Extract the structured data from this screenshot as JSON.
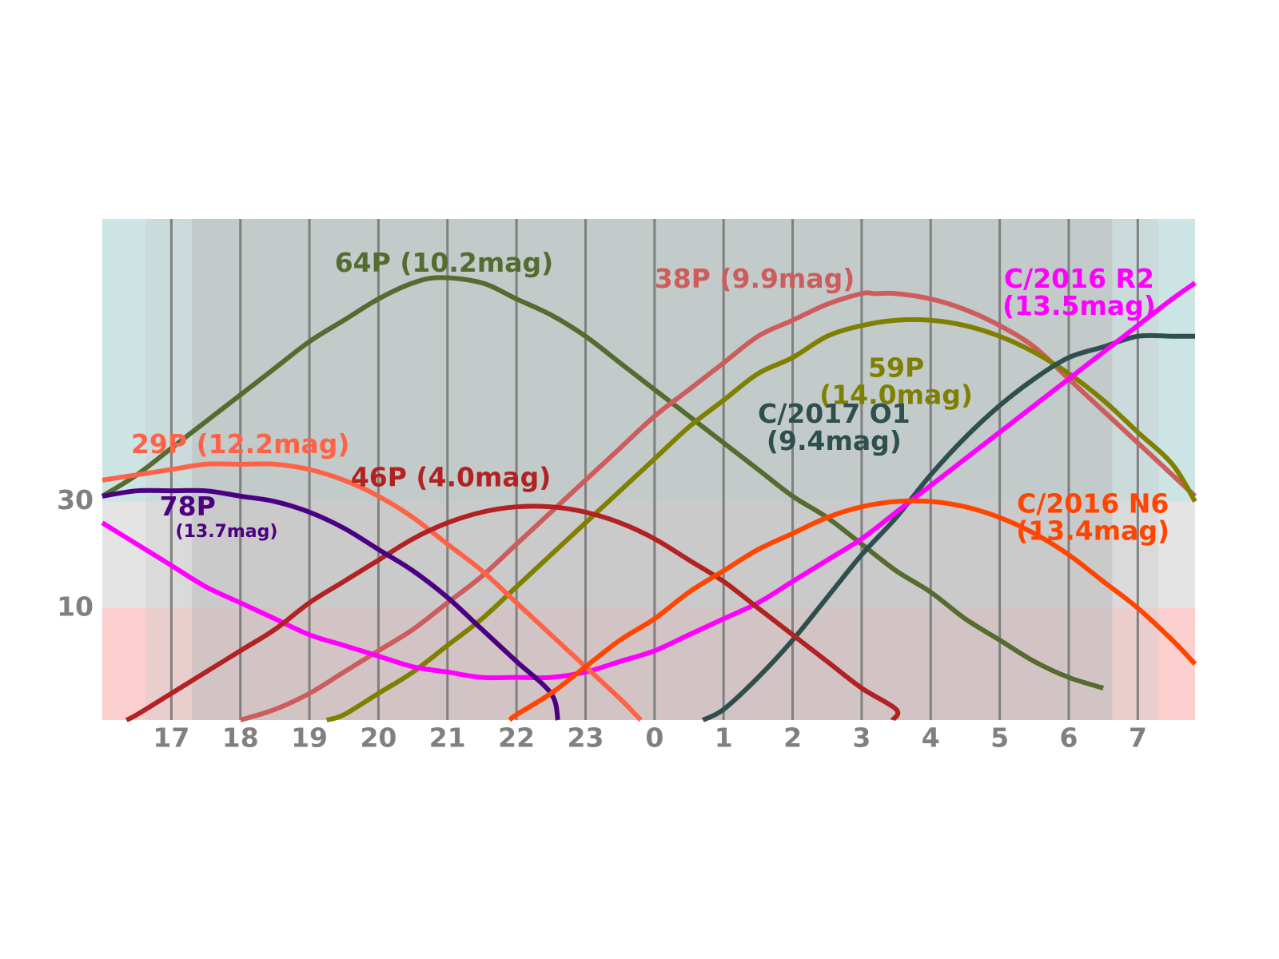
{
  "chart_data": {
    "type": "line",
    "x_ticks": [
      "17",
      "18",
      "19",
      "20",
      "21",
      "22",
      "23",
      "0",
      "1",
      "2",
      "3",
      "4",
      "5",
      "6",
      "7"
    ],
    "y_ticks": [
      30,
      10
    ],
    "xlim": [
      16.0,
      31.83
    ],
    "ylim": [
      -11,
      83
    ],
    "bands": [
      {
        "from": 30,
        "to": 83,
        "color": "#cce4e4"
      },
      {
        "from": 10,
        "to": 30,
        "color": "#e4e4e4"
      },
      {
        "from": -11,
        "to": 10,
        "color": "#fccfcf"
      }
    ],
    "night_overlay": [
      {
        "x0": 16.63,
        "x1": 31.3,
        "color": "rgba(200,200,200,0.35)"
      },
      {
        "x0": 17.3,
        "x1": 30.63,
        "color": "rgba(190,190,190,0.55)"
      }
    ],
    "series": [
      {
        "name": "64P",
        "label": "64P (10.2mag)",
        "color": "#556b2f",
        "x": [
          16.0,
          16.5,
          17.0,
          17.5,
          18.0,
          18.5,
          19.0,
          19.5,
          20.0,
          20.5,
          20.9,
          21.5,
          22.0,
          22.5,
          23.0,
          23.5,
          24.0,
          24.5,
          25.0,
          25.5,
          26.0,
          26.5,
          27.0,
          27.5,
          28.0,
          28.5,
          29.0,
          29.5,
          30.0,
          30.5
        ],
        "y": [
          31,
          35,
          40,
          45,
          50,
          55,
          60,
          64,
          68,
          71,
          72,
          71,
          68,
          65,
          61,
          56,
          51,
          46,
          41,
          36,
          31,
          27,
          22,
          17,
          13,
          8,
          4,
          0,
          -3,
          -5
        ]
      },
      {
        "name": "38P",
        "label": "38P (9.9mag)",
        "color": "#cd5c5c",
        "x": [
          18.0,
          18.5,
          19.0,
          19.5,
          20.0,
          20.5,
          21.0,
          21.5,
          22.0,
          22.5,
          23.0,
          23.5,
          24.0,
          24.5,
          25.0,
          25.5,
          26.0,
          26.5,
          27.0,
          27.2,
          27.5,
          28.0,
          28.5,
          29.0,
          29.5,
          30.0,
          30.5,
          31.0,
          31.5,
          31.83
        ],
        "y": [
          -11,
          -9,
          -6,
          -2,
          2,
          6,
          11,
          16,
          22,
          28,
          34,
          40,
          46,
          51,
          56,
          61,
          64,
          67,
          69,
          69,
          69,
          68,
          66,
          63,
          59,
          53,
          47,
          41,
          35,
          31
        ]
      },
      {
        "name": "59P",
        "label": "59P (14.0mag)",
        "color": "#808000",
        "x": [
          19.25,
          19.5,
          20.0,
          20.5,
          21.0,
          21.5,
          22.0,
          22.5,
          23.0,
          23.5,
          24.0,
          24.5,
          25.0,
          25.5,
          26.0,
          26.5,
          27.0,
          27.5,
          28.0,
          28.5,
          29.0,
          29.5,
          30.0,
          30.5,
          31.0,
          31.5,
          31.83
        ],
        "y": [
          -11,
          -10,
          -6,
          -2,
          3,
          8,
          14,
          20,
          26,
          32,
          38,
          44,
          49,
          54,
          57,
          61,
          63,
          64,
          64,
          63,
          61,
          58,
          54,
          49,
          43,
          37,
          30
        ]
      },
      {
        "name": "C/2017 O1",
        "label": "C/2017 O1 (9.4mag)",
        "color": "#2f4f4f",
        "x": [
          24.7,
          25.0,
          25.5,
          26.0,
          26.5,
          27.0,
          27.5,
          28.0,
          28.5,
          29.0,
          29.5,
          30.0,
          30.5,
          31.0,
          31.5,
          31.83
        ],
        "y": [
          -11,
          -9,
          -3,
          4,
          12,
          20,
          27,
          35,
          42,
          48,
          53,
          57,
          59,
          61,
          61,
          61
        ]
      },
      {
        "name": "C/2016 R2",
        "label": "C/2016 R2 (13.5mag)",
        "color": "#ff00ff",
        "x": [
          16.0,
          16.5,
          17.0,
          17.5,
          18.0,
          18.5,
          19.0,
          19.5,
          20.0,
          20.5,
          21.0,
          21.5,
          22.0,
          22.5,
          23.0,
          23.5,
          24.0,
          24.5,
          25.0,
          25.5,
          26.0,
          26.5,
          27.0,
          27.5,
          28.0,
          28.5,
          29.0,
          29.5,
          30.0,
          30.5,
          31.0,
          31.5,
          31.83
        ],
        "y": [
          26,
          22,
          18,
          14,
          11,
          8,
          5,
          3,
          1,
          -1,
          -2,
          -3,
          -3,
          -3,
          -2,
          0,
          2,
          5,
          8,
          11,
          15,
          19,
          23,
          28,
          33,
          38,
          43,
          48,
          53,
          58,
          63,
          68,
          71
        ]
      },
      {
        "name": "29P",
        "label": "29P (12.2mag)",
        "color": "#ff6347",
        "x": [
          16.0,
          16.5,
          17.0,
          17.5,
          18.0,
          18.5,
          19.0,
          19.5,
          20.0,
          20.5,
          21.0,
          21.5,
          22.0,
          22.5,
          23.0,
          23.5,
          23.8
        ],
        "y": [
          34,
          35,
          36,
          37,
          37,
          37,
          36,
          34,
          31,
          27,
          22,
          17,
          11,
          5,
          -1,
          -7,
          -11
        ]
      },
      {
        "name": "46P",
        "label": "46P (4.0mag)",
        "color": "#b22222",
        "x": [
          16.35,
          16.5,
          17.0,
          17.5,
          18.0,
          18.5,
          19.0,
          19.5,
          20.0,
          20.5,
          21.0,
          21.5,
          22.0,
          22.5,
          23.0,
          23.5,
          24.0,
          24.5,
          25.0,
          25.5,
          26.0,
          26.5,
          27.0,
          27.5,
          27.45
        ],
        "y": [
          -11,
          -10,
          -6,
          -2,
          2,
          6,
          11,
          15,
          19,
          23,
          26,
          28,
          29,
          29,
          28,
          26,
          23,
          19,
          15,
          10,
          5,
          0,
          -5,
          -9,
          -11
        ]
      },
      {
        "name": "78P",
        "label": "78P",
        "sub_label": "(13.7mag)",
        "color": "#4b0082",
        "x": [
          16.0,
          16.5,
          17.0,
          17.5,
          18.0,
          18.5,
          19.0,
          19.5,
          20.0,
          20.5,
          21.0,
          21.5,
          22.0,
          22.5,
          22.6
        ],
        "y": [
          31,
          32,
          32,
          32,
          31,
          30,
          28,
          25,
          21,
          17,
          12,
          6,
          0,
          -6,
          -11
        ]
      },
      {
        "name": "C/2016 N6",
        "label": "C/2016 N6 (13.4mag)",
        "color": "#ff4500",
        "x": [
          21.9,
          22.0,
          22.5,
          23.0,
          23.5,
          24.0,
          24.5,
          25.0,
          25.5,
          26.0,
          26.5,
          27.0,
          27.5,
          28.0,
          28.5,
          29.0,
          29.5,
          30.0,
          30.5,
          31.0,
          31.5,
          31.83
        ],
        "y": [
          -11,
          -10,
          -6,
          -1,
          4,
          8,
          13,
          17,
          21,
          24,
          27,
          29,
          30,
          30,
          29,
          27,
          24,
          20,
          15,
          10,
          4,
          -0.5
        ]
      }
    ],
    "labels": [
      {
        "series": "64P",
        "lines": [
          "64P (10.2mag)"
        ],
        "x": 20.95,
        "y": 74.5,
        "anchor": "middle"
      },
      {
        "series": "38P",
        "lines": [
          "38P (9.9mag)"
        ],
        "x": 25.45,
        "y": 71.5,
        "anchor": "middle"
      },
      {
        "series": "C/2016 R2",
        "lines": [
          "C/2016 R2",
          "(13.5mag)"
        ],
        "x": 30.15,
        "y": 71.5,
        "anchor": "middle"
      },
      {
        "series": "59P",
        "lines": [
          "59P",
          "(14.0mag)"
        ],
        "x": 27.5,
        "y": 54.8,
        "anchor": "middle"
      },
      {
        "series": "C/2017 O1",
        "lines": [
          "C/2017 O1",
          "(9.4mag)"
        ],
        "x": 26.6,
        "y": 46.2,
        "anchor": "middle"
      },
      {
        "series": "29P",
        "lines": [
          "29P (12.2mag)"
        ],
        "x": 18.0,
        "y": 40.5,
        "anchor": "middle"
      },
      {
        "series": "46P",
        "lines": [
          "46P (4.0mag)"
        ],
        "x": 21.05,
        "y": 34.3,
        "anchor": "middle"
      },
      {
        "series": "C/2016 N6",
        "lines": [
          "C/2016 N6",
          "(13.4mag)"
        ],
        "x": 30.35,
        "y": 29.3,
        "anchor": "middle"
      }
    ]
  }
}
